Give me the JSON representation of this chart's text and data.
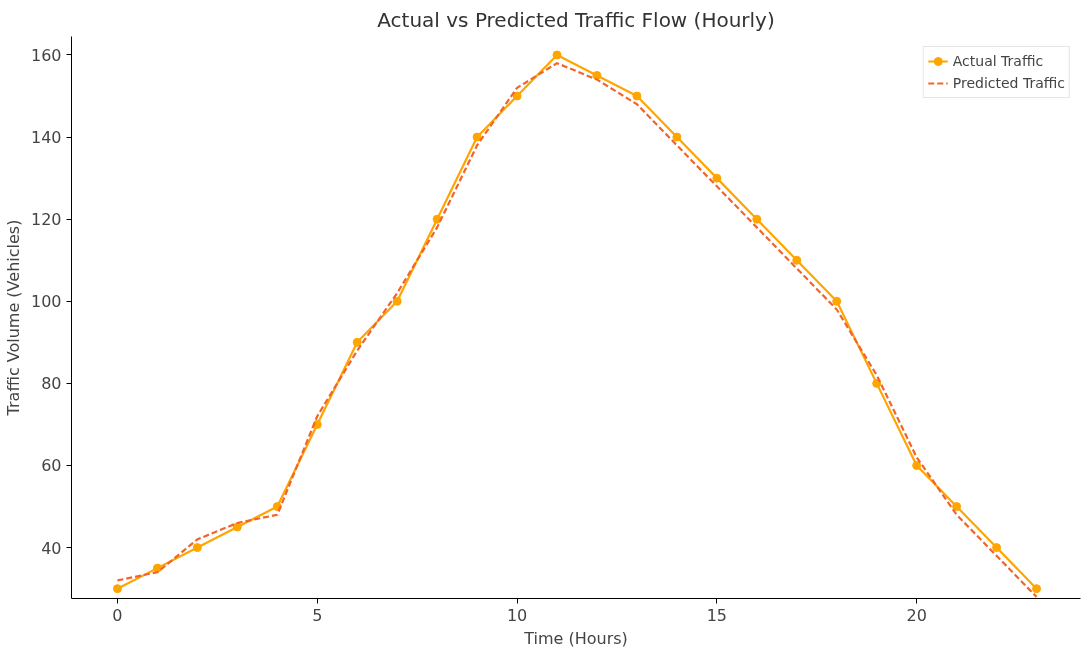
{
  "chart_data": {
    "type": "line",
    "title": "Actual vs Predicted Traffic Flow (Hourly)",
    "xlabel": "Time (Hours)",
    "ylabel": "Traffic Volume (Vehicles)",
    "x": [
      0,
      1,
      2,
      3,
      4,
      5,
      6,
      7,
      8,
      9,
      10,
      11,
      12,
      13,
      14,
      15,
      16,
      17,
      18,
      19,
      20,
      21,
      22,
      23
    ],
    "series": [
      {
        "name": "Actual Traffic",
        "color": "#ffa500",
        "marker": "circle",
        "line_style": "solid",
        "values": [
          30,
          35,
          40,
          45,
          50,
          70,
          90,
          100,
          120,
          140,
          150,
          160,
          155,
          150,
          140,
          130,
          120,
          110,
          100,
          80,
          60,
          50,
          40,
          30
        ]
      },
      {
        "name": "Predicted Traffic",
        "color": "#f4642a",
        "marker": "none",
        "line_style": "dashed",
        "values": [
          32,
          34,
          42,
          46,
          48,
          72,
          88,
          102,
          118,
          138,
          152,
          158,
          154,
          148,
          138,
          128,
          118,
          108,
          98,
          82,
          62,
          48,
          38,
          28
        ]
      }
    ],
    "xlim": [
      -1.15,
      24.1
    ],
    "ylim": [
      27.6,
      164.5
    ],
    "xticks": [
      0,
      5,
      10,
      15,
      20
    ],
    "yticks": [
      40,
      60,
      80,
      100,
      120,
      140,
      160
    ],
    "grid": false,
    "legend": "top right"
  }
}
